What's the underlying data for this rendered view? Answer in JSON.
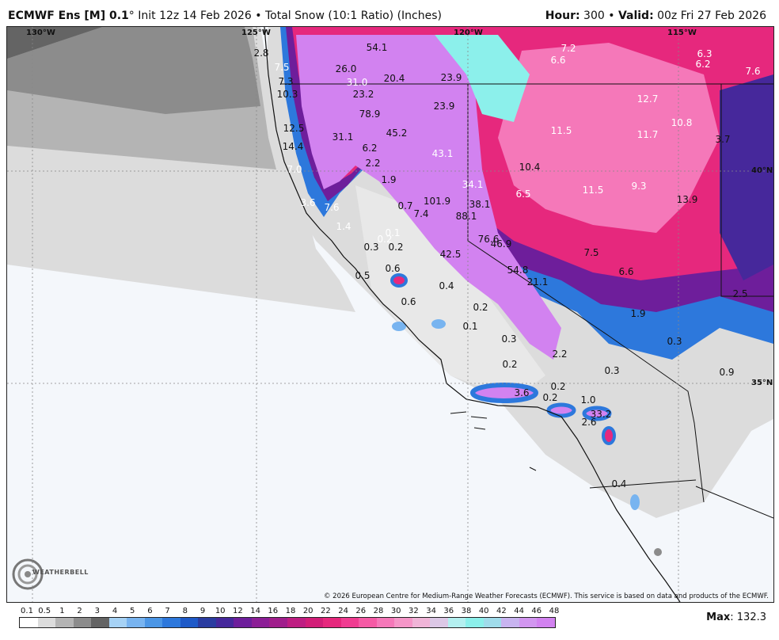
{
  "header": {
    "model": "ECMWF Ens [M] 0.1",
    "degree": "°",
    "init": " Init 12z 14 Feb 2026",
    "sep": " • ",
    "product": "Total Snow (10:1 Ratio) (Inches)",
    "hour_label": "Hour:",
    "hour_value": " 300 • ",
    "valid_label": "Valid:",
    "valid_value": " 00z Fri 27 Feb 2026"
  },
  "map": {
    "coords": [
      "130°W",
      "125°W",
      "120°W",
      "115°W",
      "40°N",
      "35°N"
    ],
    "snow_labels": [
      "54.1",
      "26.0",
      "20.4",
      "23.9",
      "7.2",
      "6.6",
      "6.3",
      "6.2",
      "7.6",
      "2.8",
      "7.5",
      "7.3",
      "31.0",
      "23.2",
      "10.3",
      "23.9",
      "12.7",
      "78.9",
      "45.2",
      "10.8",
      "12.5",
      "31.1",
      "11.5",
      "11.7",
      "3.7",
      "14.4",
      "6.2",
      "43.1",
      "2.2",
      "10.4",
      "7.0",
      "1.9",
      "34.1",
      "11.5",
      "9.3",
      "6.5",
      "3.6",
      "101.9",
      "7.6",
      "0.7",
      "7.4",
      "88.1",
      "38.1",
      "13.9",
      "1.4",
      "0.1",
      "0.2",
      "76.6",
      "46.9",
      "0.3",
      "0.2",
      "42.5",
      "7.5",
      "0.6",
      "6.6",
      "0.5",
      "54.8",
      "21.1",
      "0.4",
      "0.6",
      "0.2",
      "1.9",
      "2.5",
      "0.1",
      "0.3",
      "0.3",
      "2.2",
      "0.2",
      "0.3",
      "0.9",
      "0.2",
      "3.6",
      "0.2",
      "1.0",
      "33.2",
      "2.6",
      "0.4"
    ],
    "copyright": "© 2026 European Centre for Medium-Range Weather Forecasts (ECMWF). This service is based on data and products of the ECMWF.",
    "logo": "WEATHERBELL"
  },
  "legend": {
    "ticks": [
      "0.1",
      "0.5",
      "1",
      "2",
      "3",
      "4",
      "5",
      "6",
      "7",
      "8",
      "9",
      "10",
      "12",
      "14",
      "16",
      "18",
      "20",
      "22",
      "24",
      "26",
      "28",
      "30",
      "32",
      "34",
      "36",
      "38",
      "40",
      "42",
      "44",
      "46",
      "48"
    ],
    "colors": [
      "#ffffff",
      "#dcdcdc",
      "#b4b4b4",
      "#8c8c8c",
      "#646464",
      "#a6d2f5",
      "#78b4f0",
      "#4b96e6",
      "#2d78dc",
      "#1e5ac8",
      "#2a3ca0",
      "#46289b",
      "#6e1e9b",
      "#8c1e96",
      "#a01e8c",
      "#be1e82",
      "#d21e78",
      "#e6287d",
      "#f03c91",
      "#f55aa5",
      "#f578b9",
      "#f596c8",
      "#f0b4d7",
      "#dcc8e6",
      "#b4f0f0",
      "#8cf0eb",
      "#a0dceb",
      "#c8b4f0",
      "#d296f0",
      "#d282f0"
    ],
    "max_label": "Max",
    "max_value": ": 132.3"
  }
}
